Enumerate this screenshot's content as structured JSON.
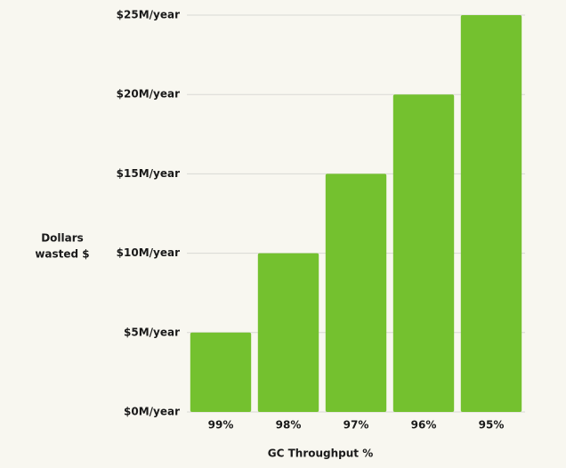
{
  "chart_data": {
    "type": "bar",
    "categories": [
      "99%",
      "98%",
      "97%",
      "96%",
      "95%"
    ],
    "values": [
      5,
      10,
      15,
      20,
      25
    ],
    "color": "#74c12f",
    "ylim": [
      0,
      25
    ],
    "yticks": [
      {
        "value": 0,
        "label": "$0M/year"
      },
      {
        "value": 5,
        "label": "$5M/year"
      },
      {
        "value": 10,
        "label": "$10M/year"
      },
      {
        "value": 15,
        "label": "$15M/year"
      },
      {
        "value": 20,
        "label": "$20M/year"
      },
      {
        "value": 25,
        "label": "$25M/year"
      }
    ],
    "grid": true,
    "y_label": [
      "Dollars",
      "wasted $"
    ],
    "x_label": "GC Throughput %"
  }
}
